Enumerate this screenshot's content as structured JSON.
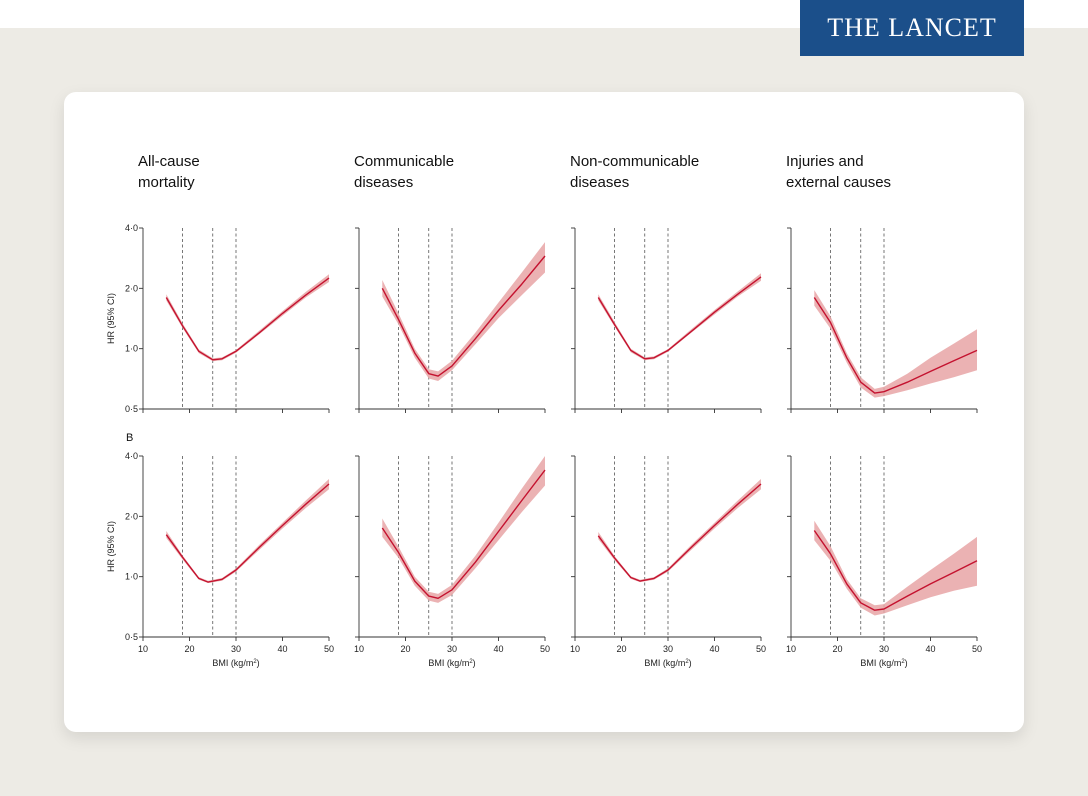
{
  "header": {
    "logo_text": "THE LANCET"
  },
  "colors": {
    "line": "#c4122f",
    "band": "#e8a4a6",
    "axis": "#333333",
    "logo_bg": "#1b4f8a"
  },
  "figure": {
    "panel_titles": [
      [
        "All-cause",
        "mortality"
      ],
      [
        "Communicable",
        "diseases"
      ],
      [
        "Non-communicable",
        "diseases"
      ],
      [
        "Injuries and",
        "external causes"
      ]
    ],
    "row_b_label": "B",
    "ylabel": "HR (95% CI)",
    "xlabel_main": "BMI (kg/m",
    "xlabel_sup": "2",
    "xlabel_close": ")",
    "xticks": [
      10,
      20,
      30,
      40,
      50
    ],
    "yticks": [
      {
        "value": 0.5,
        "label": "0·5"
      },
      {
        "value": 1,
        "label": "1·0"
      },
      {
        "value": 2,
        "label": "2·0"
      },
      {
        "value": 4,
        "label": "4·0"
      }
    ]
  },
  "chart_data": [
    {
      "type": "line",
      "row": "A",
      "column": 1,
      "xlim": [
        10,
        50
      ],
      "ylim": [
        0.5,
        4
      ],
      "yscale": "log",
      "reference_lines_x": [
        18.5,
        25,
        30
      ],
      "x": [
        15,
        18.5,
        22,
        25,
        27,
        30,
        35,
        40,
        45,
        50
      ],
      "y": [
        1.8,
        1.3,
        0.97,
        0.88,
        0.89,
        0.97,
        1.2,
        1.5,
        1.85,
        2.25
      ],
      "lower": [
        1.74,
        1.27,
        0.95,
        0.865,
        0.875,
        0.955,
        1.18,
        1.46,
        1.8,
        2.15
      ],
      "upper": [
        1.87,
        1.34,
        0.99,
        0.895,
        0.905,
        0.985,
        1.23,
        1.54,
        1.92,
        2.35
      ]
    },
    {
      "type": "line",
      "row": "A",
      "column": 2,
      "xlim": [
        10,
        50
      ],
      "ylim": [
        0.5,
        4
      ],
      "yscale": "log",
      "reference_lines_x": [
        18.5,
        25,
        30
      ],
      "x": [
        15,
        18.5,
        22,
        25,
        27,
        30,
        35,
        40,
        45,
        50
      ],
      "y": [
        2.0,
        1.4,
        0.95,
        0.75,
        0.73,
        0.82,
        1.12,
        1.55,
        2.1,
        2.9
      ],
      "lower": [
        1.82,
        1.32,
        0.9,
        0.71,
        0.69,
        0.78,
        1.05,
        1.42,
        1.85,
        2.4
      ],
      "upper": [
        2.2,
        1.5,
        1.0,
        0.79,
        0.77,
        0.87,
        1.2,
        1.7,
        2.4,
        3.4
      ]
    },
    {
      "type": "line",
      "row": "A",
      "column": 3,
      "xlim": [
        10,
        50
      ],
      "ylim": [
        0.5,
        4
      ],
      "yscale": "log",
      "reference_lines_x": [
        18.5,
        25,
        30
      ],
      "x": [
        15,
        18.5,
        22,
        25,
        27,
        30,
        35,
        40,
        45,
        50
      ],
      "y": [
        1.8,
        1.32,
        0.98,
        0.89,
        0.9,
        0.98,
        1.22,
        1.52,
        1.87,
        2.28
      ],
      "lower": [
        1.74,
        1.29,
        0.96,
        0.875,
        0.885,
        0.965,
        1.2,
        1.48,
        1.82,
        2.18
      ],
      "upper": [
        1.87,
        1.36,
        1.0,
        0.905,
        0.915,
        0.995,
        1.25,
        1.56,
        1.93,
        2.38
      ]
    },
    {
      "type": "line",
      "row": "A",
      "column": 4,
      "xlim": [
        10,
        50
      ],
      "ylim": [
        0.5,
        4
      ],
      "yscale": "log",
      "reference_lines_x": [
        18.5,
        25,
        30
      ],
      "x": [
        15,
        18.5,
        22,
        25,
        28,
        30,
        35,
        40,
        45,
        50
      ],
      "y": [
        1.8,
        1.35,
        0.9,
        0.68,
        0.6,
        0.61,
        0.68,
        0.77,
        0.87,
        0.98
      ],
      "lower": [
        1.64,
        1.26,
        0.85,
        0.64,
        0.57,
        0.58,
        0.62,
        0.67,
        0.72,
        0.78
      ],
      "upper": [
        1.96,
        1.45,
        0.95,
        0.72,
        0.63,
        0.645,
        0.75,
        0.9,
        1.06,
        1.25
      ]
    },
    {
      "type": "line",
      "row": "B",
      "column": 1,
      "xlim": [
        10,
        50
      ],
      "ylim": [
        0.5,
        4
      ],
      "yscale": "log",
      "reference_lines_x": [
        18.5,
        25,
        30
      ],
      "x": [
        15,
        18.5,
        22,
        24,
        27,
        30,
        35,
        40,
        45,
        50
      ],
      "y": [
        1.62,
        1.25,
        0.98,
        0.94,
        0.97,
        1.08,
        1.4,
        1.8,
        2.3,
        2.9
      ],
      "lower": [
        1.56,
        1.22,
        0.965,
        0.93,
        0.955,
        1.06,
        1.36,
        1.74,
        2.2,
        2.73
      ],
      "upper": [
        1.69,
        1.28,
        0.995,
        0.955,
        0.985,
        1.1,
        1.44,
        1.86,
        2.4,
        3.07
      ]
    },
    {
      "type": "line",
      "row": "B",
      "column": 2,
      "xlim": [
        10,
        50
      ],
      "ylim": [
        0.5,
        4
      ],
      "yscale": "log",
      "reference_lines_x": [
        18.5,
        25,
        30
      ],
      "x": [
        15,
        18.5,
        22,
        25,
        27,
        30,
        35,
        40,
        45,
        50
      ],
      "y": [
        1.75,
        1.32,
        0.95,
        0.8,
        0.78,
        0.86,
        1.18,
        1.68,
        2.4,
        3.4
      ],
      "lower": [
        1.58,
        1.24,
        0.9,
        0.76,
        0.74,
        0.81,
        1.1,
        1.52,
        2.1,
        2.85
      ],
      "upper": [
        1.95,
        1.41,
        1.0,
        0.84,
        0.82,
        0.91,
        1.27,
        1.86,
        2.75,
        4.0
      ]
    },
    {
      "type": "line",
      "row": "B",
      "column": 3,
      "xlim": [
        10,
        50
      ],
      "ylim": [
        0.5,
        4
      ],
      "yscale": "log",
      "reference_lines_x": [
        18.5,
        25,
        30
      ],
      "x": [
        15,
        18.5,
        22,
        24,
        27,
        30,
        35,
        40,
        45,
        50
      ],
      "y": [
        1.6,
        1.24,
        0.99,
        0.95,
        0.98,
        1.08,
        1.4,
        1.8,
        2.3,
        2.9
      ],
      "lower": [
        1.54,
        1.21,
        0.975,
        0.94,
        0.965,
        1.06,
        1.36,
        1.74,
        2.2,
        2.73
      ],
      "upper": [
        1.67,
        1.27,
        1.005,
        0.965,
        0.995,
        1.1,
        1.44,
        1.86,
        2.4,
        3.07
      ]
    },
    {
      "type": "line",
      "row": "B",
      "column": 4,
      "xlim": [
        10,
        50
      ],
      "ylim": [
        0.5,
        4
      ],
      "yscale": "log",
      "reference_lines_x": [
        18.5,
        25,
        30
      ],
      "x": [
        15,
        18.5,
        22,
        25,
        28,
        30,
        35,
        40,
        45,
        50
      ],
      "y": [
        1.7,
        1.3,
        0.92,
        0.74,
        0.68,
        0.69,
        0.8,
        0.92,
        1.05,
        1.2
      ],
      "lower": [
        1.52,
        1.2,
        0.87,
        0.7,
        0.64,
        0.655,
        0.72,
        0.79,
        0.85,
        0.9
      ],
      "upper": [
        1.9,
        1.42,
        0.97,
        0.78,
        0.72,
        0.73,
        0.89,
        1.08,
        1.3,
        1.58
      ]
    }
  ]
}
